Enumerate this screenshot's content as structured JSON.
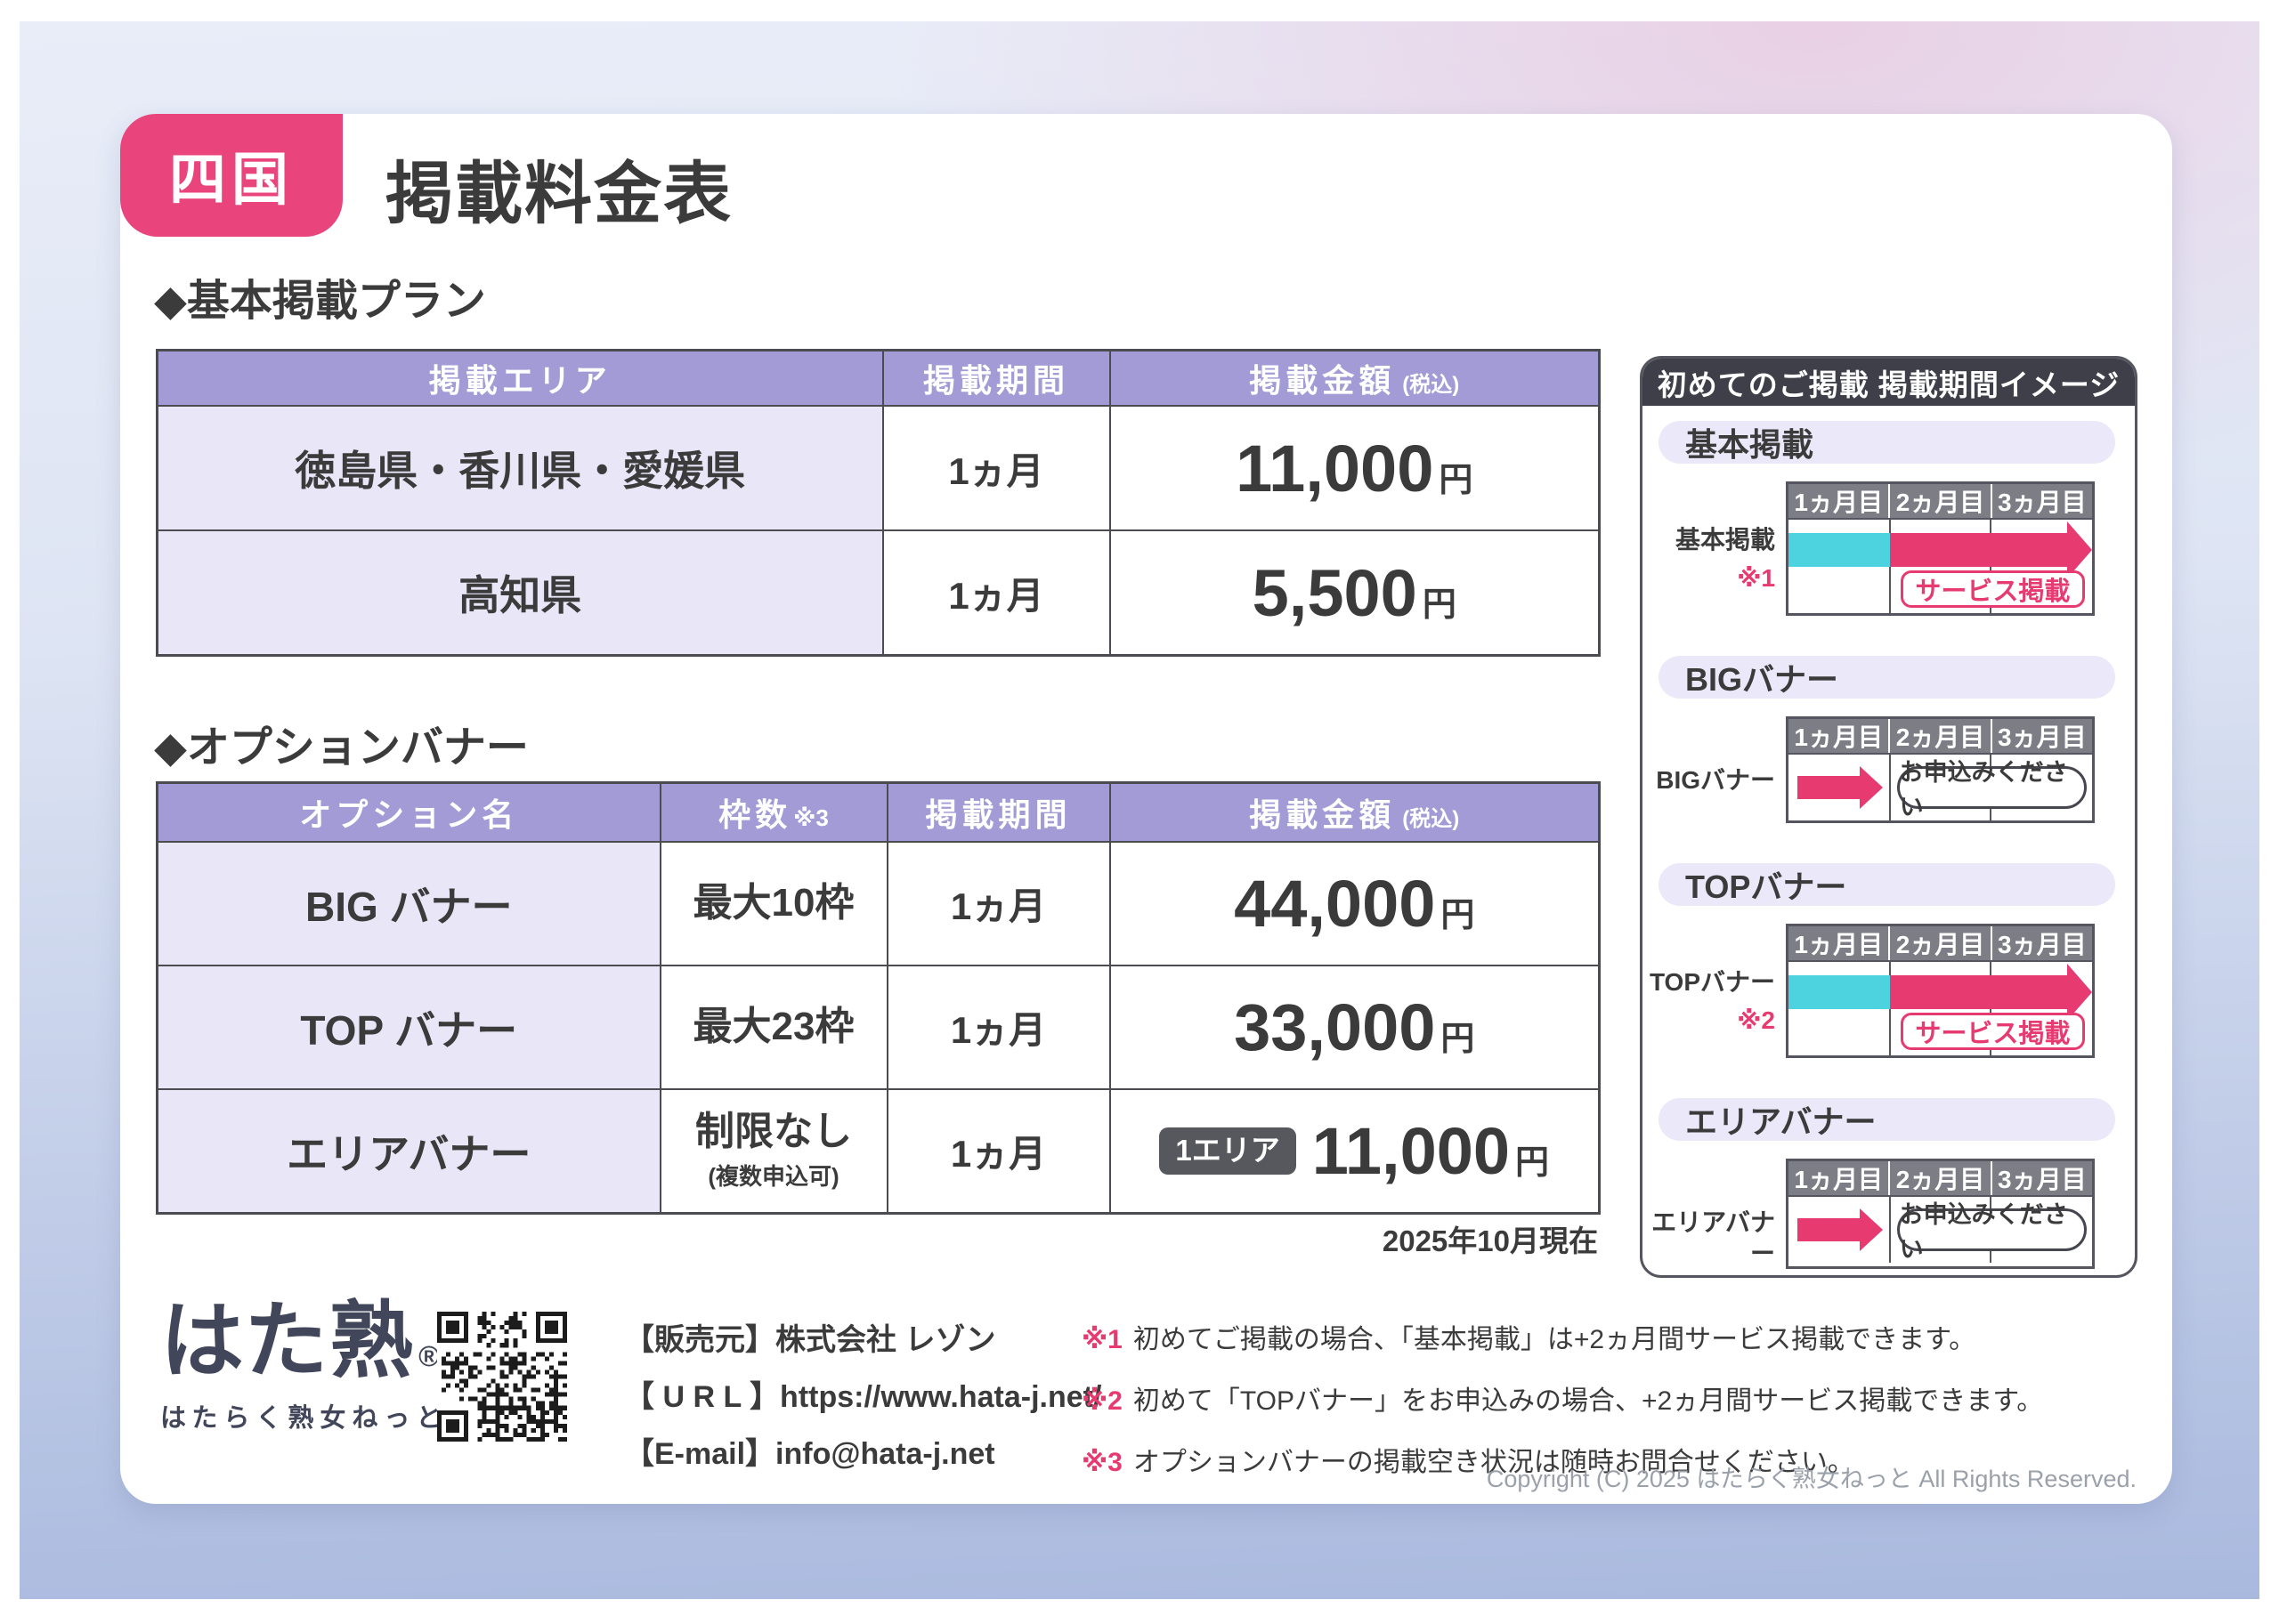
{
  "colors": {
    "accent_pink": "#e9447b",
    "arrow_pink": "#e73a70",
    "bar_cyan": "#4dd2e0",
    "table_header_purple": "#a29bd6",
    "cell_lavender": "#e9e6f7",
    "pill_lavender": "#eae8f9",
    "panel_header_dark": "#3e3f48",
    "timeline_header_gray": "#7d7d85",
    "dark_text": "#3b3b3b"
  },
  "page": {
    "region_badge": "四国",
    "title": "掲載料金表"
  },
  "basic_plan": {
    "heading": "◆基本掲載プラン",
    "header": {
      "area": "掲載エリア",
      "period": "掲載期間",
      "price": "掲載金額",
      "tax": "(税込)"
    },
    "rows": [
      {
        "area": "徳島県・香川県・愛媛県",
        "period": "1ヵ月",
        "price": "11,000",
        "unit": "円"
      },
      {
        "area": "高知県",
        "period": "1ヵ月",
        "price": "5,500",
        "unit": "円"
      }
    ]
  },
  "option_banner": {
    "heading": "◆オプションバナー",
    "header": {
      "name": "オプション名",
      "slots": "枠数",
      "slots_ref": "※3",
      "period": "掲載期間",
      "price": "掲載金額",
      "tax": "(税込)"
    },
    "rows": [
      {
        "name": "BIG バナー",
        "slots": "最大10枠",
        "slots_sub": "",
        "period": "1ヵ月",
        "price_badge": "",
        "price": "44,000",
        "unit": "円"
      },
      {
        "name": "TOP バナー",
        "slots": "最大23枠",
        "slots_sub": "",
        "period": "1ヵ月",
        "price_badge": "",
        "price": "33,000",
        "unit": "円"
      },
      {
        "name": "エリアバナー",
        "slots": "制限なし",
        "slots_sub": "(複数申込可)",
        "period": "1ヵ月",
        "price_badge": "1エリア",
        "price": "11,000",
        "unit": "円"
      }
    ],
    "as_of": "2025年10月現在"
  },
  "sidebar": {
    "title": "初めてのご掲載 掲載期間イメージ",
    "months": [
      "1ヵ月目",
      "2ヵ月目",
      "3ヵ月目"
    ],
    "sections": [
      {
        "heading": "基本掲載",
        "row_label": "基本掲載",
        "note_ref": "※1",
        "service_label": "サービス掲載"
      },
      {
        "heading": "BIGバナー",
        "row_label": "BIGバナー",
        "note_ref": "",
        "apply_label": "お申込みください"
      },
      {
        "heading": "TOPバナー",
        "row_label": "TOPバナー",
        "note_ref": "※2",
        "service_label": "サービス掲載"
      },
      {
        "heading": "エリアバナー",
        "row_label": "エリアバナー",
        "note_ref": "",
        "apply_label": "お申込みください"
      }
    ]
  },
  "footer": {
    "logo_text": "はた熟",
    "logo_mark": "®",
    "logo_subtitle": "はたらく熟女ねっと",
    "contact": [
      {
        "label": "【販売元】",
        "value": "株式会社 レゾン"
      },
      {
        "label": "【 U R L 】",
        "value": "https://www.hata-j.net/"
      },
      {
        "label": "【E-mail】",
        "value": "info@hata-j.net"
      }
    ],
    "notes": [
      {
        "ref": "※1",
        "text": "初めてご掲載の場合、「基本掲載」は+2ヵ月間サービス掲載できます。"
      },
      {
        "ref": "※2",
        "text": "初めて「TOPバナー」をお申込みの場合、+2ヵ月間サービス掲載できます。"
      },
      {
        "ref": "※3",
        "text": "オプションバナーの掲載空き状況は随時お問合せください。"
      }
    ],
    "copyright": "Copyright (C) 2025 はたらく熟女ねっと All Rights Reserved."
  }
}
